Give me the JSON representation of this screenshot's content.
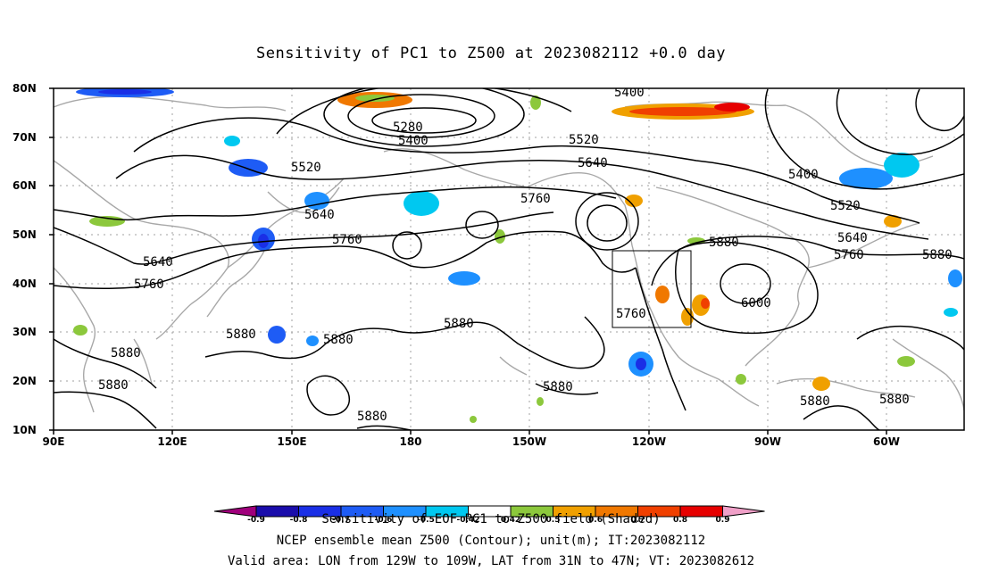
{
  "title": "Sensitivity of PC1 to Z500 at 2023082112 +0.0 day",
  "lat_labels": [
    "80N",
    "70N",
    "60N",
    "50N",
    "40N",
    "30N",
    "20N",
    "10N"
  ],
  "lon_labels": [
    "90E",
    "120E",
    "150E",
    "180",
    "150W",
    "120W",
    "90W",
    "60W"
  ],
  "contour_labels": [
    "5400",
    "5280",
    "5400",
    "5520",
    "5520",
    "5640",
    "5640",
    "5760",
    "5760",
    "5640",
    "5880",
    "5760",
    "5880",
    "5880",
    "5880",
    "5880",
    "5880",
    "5880",
    "5760",
    "5880",
    "6000",
    "5880",
    "5400",
    "5520",
    "5640",
    "5760",
    "5880",
    "5880",
    "5880",
    "5880",
    "5760"
  ],
  "colorbar": {
    "ticks": [
      "-0.9",
      "-0.8",
      "-0.7",
      "-0.6",
      "-0.5",
      "-0.42",
      "0.42",
      "0.5",
      "0.6",
      "0.7",
      "0.8",
      "0.9"
    ],
    "colors": [
      "#a0007c",
      "#1a0dab",
      "#1a2fe6",
      "#1e5cf5",
      "#1e90ff",
      "#00c8f0",
      "#ffffff",
      "#8cc83c",
      "#f0a000",
      "#f07800",
      "#f04000",
      "#e60000",
      "#f0a0c8"
    ],
    "title": "Sensitivity of EOF PC1 to Z500 field (Shaded)"
  },
  "notes": [
    "NCEP ensemble mean Z500 (Contour); unit(m); IT:2023082112",
    "Valid area: LON from 129W to 109W, LAT from 31N to 47N; VT: 2023082612"
  ],
  "valid_area": {
    "lon": [
      "129W",
      "109W"
    ],
    "lat": [
      "31N",
      "47N"
    ]
  }
}
